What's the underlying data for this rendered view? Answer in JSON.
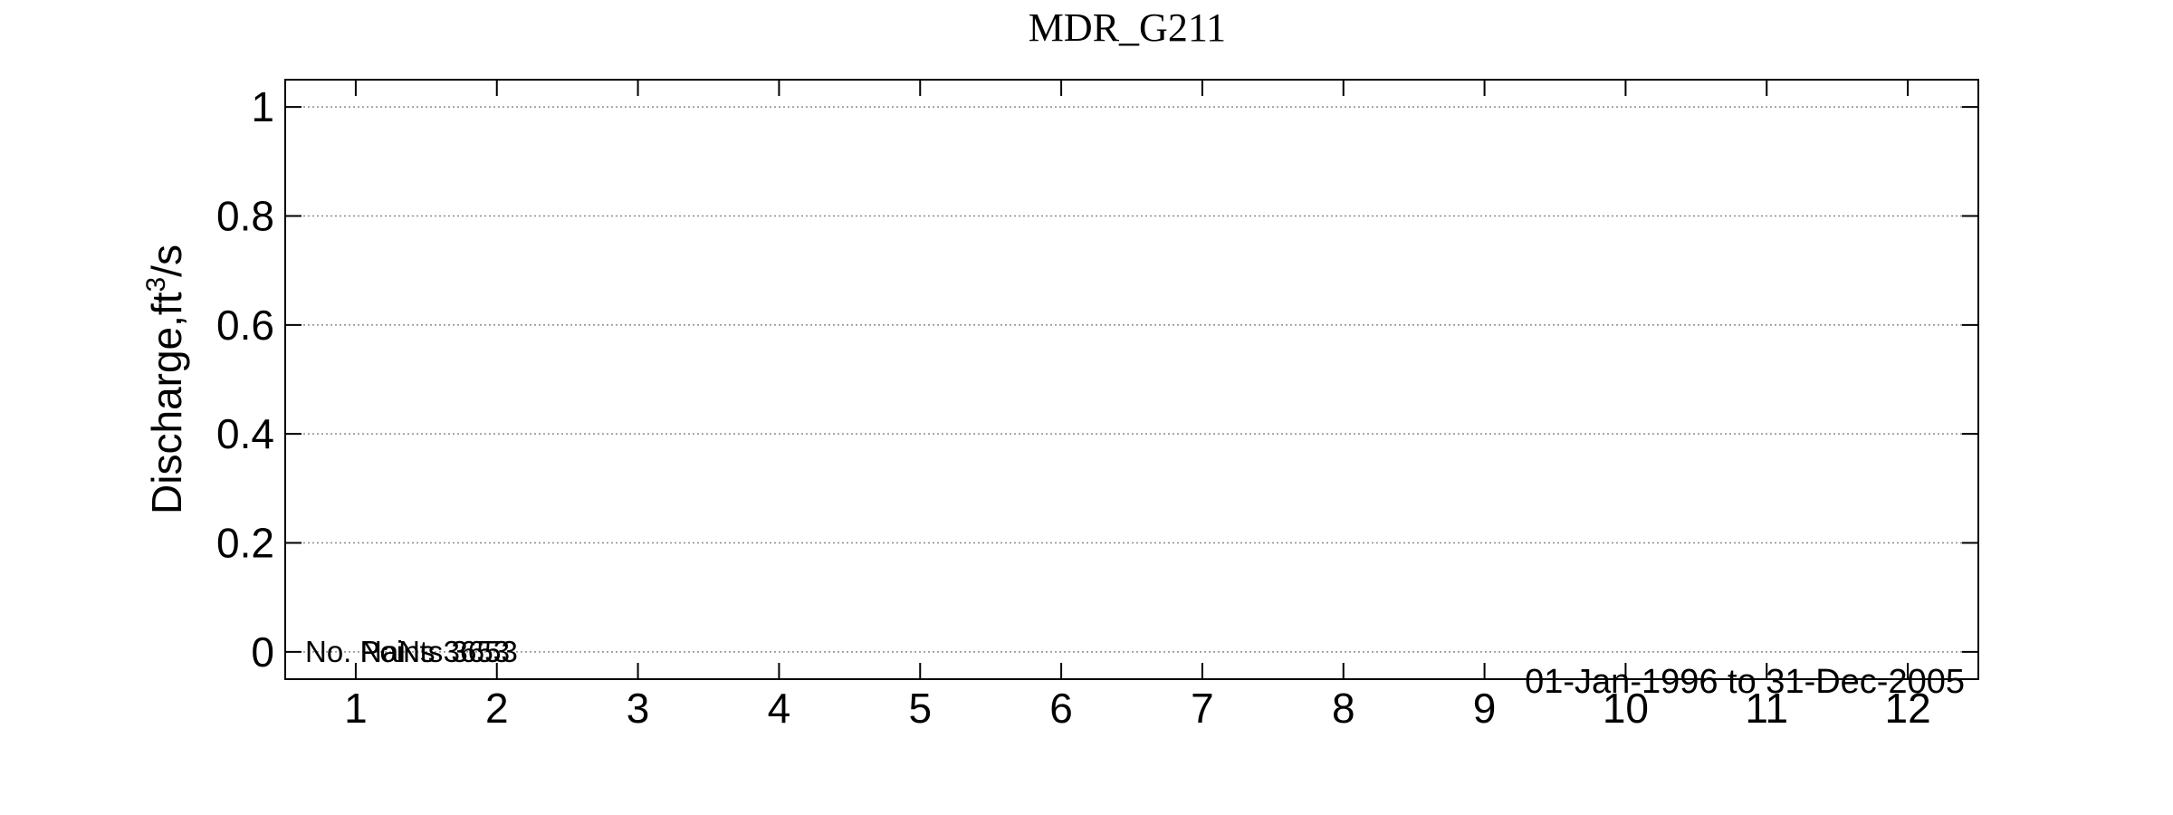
{
  "chart_data": {
    "type": "line",
    "title": "MDR_G211",
    "xlabel": "",
    "ylabel": "Discharge,ft",
    "ylabel_superscript": "3",
    "ylabel_suffix": "/s",
    "x_ticks": [
      "1",
      "2",
      "3",
      "4",
      "5",
      "6",
      "7",
      "8",
      "9",
      "10",
      "11",
      "12"
    ],
    "xlim": [
      0.5,
      12.5
    ],
    "y_ticks": [
      "0",
      "0.2",
      "0.4",
      "0.6",
      "0.8",
      "1"
    ],
    "ylim": [
      -0.05,
      1.05
    ],
    "grid": "horizontal dotted",
    "series": [],
    "annotations": {
      "points_label_a": "No. Points 3653",
      "points_label_b": "NaNs 3653",
      "date_range": "01-Jan-1996 to 31-Dec-2005"
    }
  }
}
